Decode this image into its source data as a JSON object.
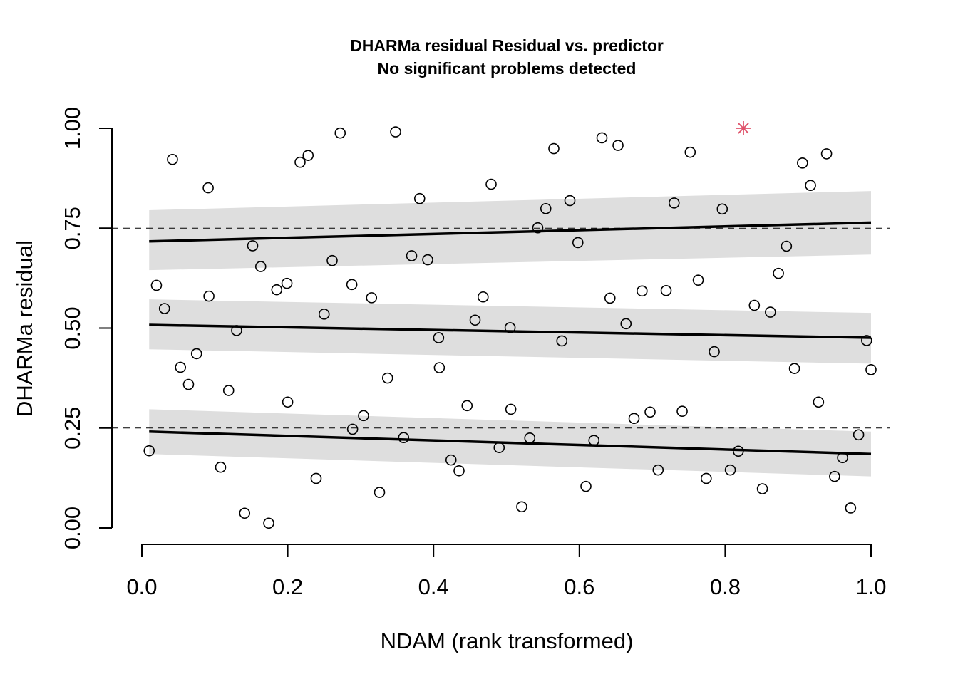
{
  "chart_data": {
    "type": "scatter",
    "title": "DHARMa residual Residual vs. predictor",
    "subtitle": "No significant problems detected",
    "xlabel": "NDAM (rank transformed)",
    "ylabel": "DHARMa residual",
    "xlim": [
      0.0,
      1.0
    ],
    "ylim": [
      0.0,
      1.0
    ],
    "xticks": [
      "0.0",
      "0.2",
      "0.4",
      "0.6",
      "0.8",
      "1.0"
    ],
    "yticks": [
      "0.00",
      "0.25",
      "0.50",
      "0.75",
      "1.00"
    ],
    "reference_lines": [
      0.25,
      0.5,
      0.75
    ],
    "points": [
      {
        "x": 0.01,
        "y": 0.193
      },
      {
        "x": 0.02,
        "y": 0.607
      },
      {
        "x": 0.031,
        "y": 0.549
      },
      {
        "x": 0.042,
        "y": 0.922
      },
      {
        "x": 0.053,
        "y": 0.402
      },
      {
        "x": 0.064,
        "y": 0.359
      },
      {
        "x": 0.075,
        "y": 0.436
      },
      {
        "x": 0.091,
        "y": 0.851
      },
      {
        "x": 0.092,
        "y": 0.58
      },
      {
        "x": 0.108,
        "y": 0.152
      },
      {
        "x": 0.119,
        "y": 0.344
      },
      {
        "x": 0.13,
        "y": 0.494
      },
      {
        "x": 0.141,
        "y": 0.037
      },
      {
        "x": 0.152,
        "y": 0.706
      },
      {
        "x": 0.163,
        "y": 0.654
      },
      {
        "x": 0.174,
        "y": 0.012
      },
      {
        "x": 0.185,
        "y": 0.596
      },
      {
        "x": 0.199,
        "y": 0.612
      },
      {
        "x": 0.2,
        "y": 0.315
      },
      {
        "x": 0.217,
        "y": 0.915
      },
      {
        "x": 0.228,
        "y": 0.932
      },
      {
        "x": 0.239,
        "y": 0.124
      },
      {
        "x": 0.25,
        "y": 0.535
      },
      {
        "x": 0.261,
        "y": 0.669
      },
      {
        "x": 0.272,
        "y": 0.988
      },
      {
        "x": 0.288,
        "y": 0.609
      },
      {
        "x": 0.289,
        "y": 0.247
      },
      {
        "x": 0.304,
        "y": 0.281
      },
      {
        "x": 0.315,
        "y": 0.576
      },
      {
        "x": 0.326,
        "y": 0.089
      },
      {
        "x": 0.337,
        "y": 0.375
      },
      {
        "x": 0.348,
        "y": 0.991
      },
      {
        "x": 0.359,
        "y": 0.226
      },
      {
        "x": 0.37,
        "y": 0.681
      },
      {
        "x": 0.381,
        "y": 0.824
      },
      {
        "x": 0.392,
        "y": 0.671
      },
      {
        "x": 0.407,
        "y": 0.476
      },
      {
        "x": 0.408,
        "y": 0.401
      },
      {
        "x": 0.424,
        "y": 0.17
      },
      {
        "x": 0.435,
        "y": 0.143
      },
      {
        "x": 0.446,
        "y": 0.306
      },
      {
        "x": 0.457,
        "y": 0.52
      },
      {
        "x": 0.468,
        "y": 0.578
      },
      {
        "x": 0.479,
        "y": 0.86
      },
      {
        "x": 0.49,
        "y": 0.201
      },
      {
        "x": 0.505,
        "y": 0.501
      },
      {
        "x": 0.506,
        "y": 0.297
      },
      {
        "x": 0.521,
        "y": 0.053
      },
      {
        "x": 0.532,
        "y": 0.225
      },
      {
        "x": 0.543,
        "y": 0.751
      },
      {
        "x": 0.554,
        "y": 0.799
      },
      {
        "x": 0.565,
        "y": 0.949
      },
      {
        "x": 0.576,
        "y": 0.468
      },
      {
        "x": 0.587,
        "y": 0.819
      },
      {
        "x": 0.598,
        "y": 0.714
      },
      {
        "x": 0.609,
        "y": 0.104
      },
      {
        "x": 0.62,
        "y": 0.219
      },
      {
        "x": 0.631,
        "y": 0.976
      },
      {
        "x": 0.642,
        "y": 0.575
      },
      {
        "x": 0.653,
        "y": 0.957
      },
      {
        "x": 0.664,
        "y": 0.511
      },
      {
        "x": 0.675,
        "y": 0.274
      },
      {
        "x": 0.686,
        "y": 0.593
      },
      {
        "x": 0.697,
        "y": 0.29
      },
      {
        "x": 0.708,
        "y": 0.145
      },
      {
        "x": 0.719,
        "y": 0.594
      },
      {
        "x": 0.73,
        "y": 0.813
      },
      {
        "x": 0.741,
        "y": 0.292
      },
      {
        "x": 0.752,
        "y": 0.94
      },
      {
        "x": 0.763,
        "y": 0.62
      },
      {
        "x": 0.774,
        "y": 0.124
      },
      {
        "x": 0.785,
        "y": 0.441
      },
      {
        "x": 0.796,
        "y": 0.798
      },
      {
        "x": 0.807,
        "y": 0.145
      },
      {
        "x": 0.818,
        "y": 0.192
      },
      {
        "x": 0.84,
        "y": 0.557
      },
      {
        "x": 0.851,
        "y": 0.098
      },
      {
        "x": 0.862,
        "y": 0.54
      },
      {
        "x": 0.873,
        "y": 0.637
      },
      {
        "x": 0.884,
        "y": 0.705
      },
      {
        "x": 0.895,
        "y": 0.399
      },
      {
        "x": 0.906,
        "y": 0.913
      },
      {
        "x": 0.917,
        "y": 0.857
      },
      {
        "x": 0.928,
        "y": 0.315
      },
      {
        "x": 0.939,
        "y": 0.936
      },
      {
        "x": 0.95,
        "y": 0.129
      },
      {
        "x": 0.961,
        "y": 0.176
      },
      {
        "x": 0.972,
        "y": 0.05
      },
      {
        "x": 0.983,
        "y": 0.233
      },
      {
        "x": 0.994,
        "y": 0.469
      },
      {
        "x": 1.0,
        "y": 0.396
      }
    ],
    "outliers": [
      {
        "x": 0.825,
        "y": 1.0
      }
    ],
    "quantile_fits": [
      {
        "quantile": 0.25,
        "start": [
          0.01,
          0.241
        ],
        "end": [
          1.0,
          0.185
        ],
        "band_start": [
          0.185,
          0.297
        ],
        "band_end": [
          0.129,
          0.241
        ]
      },
      {
        "quantile": 0.5,
        "start": [
          0.01,
          0.508
        ],
        "end": [
          1.0,
          0.476
        ],
        "band_start": [
          0.447,
          0.572
        ],
        "band_end": [
          0.411,
          0.538
        ]
      },
      {
        "quantile": 0.75,
        "start": [
          0.01,
          0.717
        ],
        "end": [
          1.0,
          0.764
        ],
        "band_start": [
          0.645,
          0.795
        ],
        "band_end": [
          0.684,
          0.843
        ]
      }
    ],
    "colors": {
      "points": "#000000",
      "outlier": "#DF536B",
      "fit": "#000000",
      "band": "#DEDEDE",
      "reference": "#000000"
    },
    "grid": false,
    "legend": "none"
  }
}
